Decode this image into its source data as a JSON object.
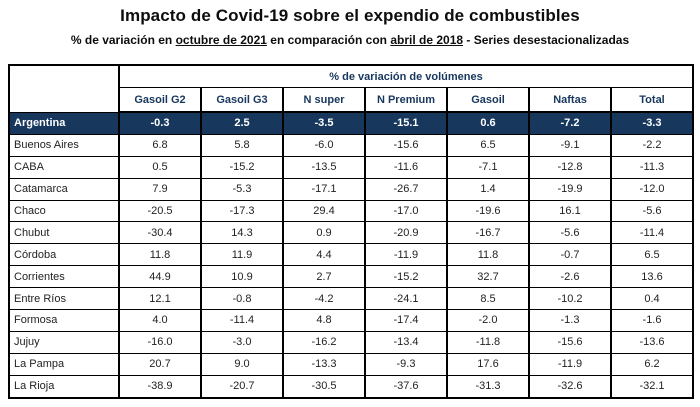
{
  "title": "Impacto de Covid-19 sobre el expendio de combustibles",
  "subtitle_parts": {
    "prefix": "% de variación en ",
    "period_new": "octubre de 2021",
    "middle": " en comparación con ",
    "period_base": "abril de 2018",
    "suffix": " - Series desestacionalizadas"
  },
  "colors": {
    "highlight_row_bg": "#17375D",
    "highlight_row_text": "#FFFFFF",
    "header_text": "#17375D",
    "border": "#000000"
  },
  "chart_data": {
    "type": "table",
    "title": "Impacto de Covid-19 sobre el expendio de combustibles",
    "subtitle": "% de variación en octubre de 2021 en comparación con abril de 2018 - Series desestacionalizadas",
    "group_header": "% de variación de volúmenes",
    "columns": [
      "Gasoil G2",
      "Gasoil G3",
      "N super",
      "N Premium",
      "Gasoil",
      "Naftas",
      "Total"
    ],
    "rows": [
      {
        "region": "Argentina",
        "highlight": true,
        "values": [
          -0.3,
          2.5,
          -3.5,
          -15.1,
          0.6,
          -7.2,
          -3.3
        ]
      },
      {
        "region": "Buenos Aires",
        "highlight": false,
        "values": [
          6.8,
          5.8,
          -6.0,
          -15.6,
          6.5,
          -9.1,
          -2.2
        ]
      },
      {
        "region": "CABA",
        "highlight": false,
        "values": [
          0.5,
          -15.2,
          -13.5,
          -11.6,
          -7.1,
          -12.8,
          -11.3
        ]
      },
      {
        "region": "Catamarca",
        "highlight": false,
        "values": [
          7.9,
          -5.3,
          -17.1,
          -26.7,
          1.4,
          -19.9,
          -12.0
        ]
      },
      {
        "region": "Chaco",
        "highlight": false,
        "values": [
          -20.5,
          -17.3,
          29.4,
          -17.0,
          -19.6,
          16.1,
          -5.6
        ]
      },
      {
        "region": "Chubut",
        "highlight": false,
        "values": [
          -30.4,
          14.3,
          0.9,
          -20.9,
          -16.7,
          -5.6,
          -11.4
        ]
      },
      {
        "region": "Córdoba",
        "highlight": false,
        "values": [
          11.8,
          11.9,
          4.4,
          -11.9,
          11.8,
          -0.7,
          6.5
        ]
      },
      {
        "region": "Corrientes",
        "highlight": false,
        "values": [
          44.9,
          10.9,
          2.7,
          -15.2,
          32.7,
          -2.6,
          13.6
        ]
      },
      {
        "region": "Entre Ríos",
        "highlight": false,
        "values": [
          12.1,
          -0.8,
          -4.2,
          -24.1,
          8.5,
          -10.2,
          0.4
        ]
      },
      {
        "region": "Formosa",
        "highlight": false,
        "values": [
          4.0,
          -11.4,
          4.8,
          -17.4,
          -2.0,
          -1.3,
          -1.6
        ]
      },
      {
        "region": "Jujuy",
        "highlight": false,
        "values": [
          -16.0,
          -3.0,
          -16.2,
          -13.4,
          -11.8,
          -15.6,
          -13.6
        ]
      },
      {
        "region": "La Pampa",
        "highlight": false,
        "values": [
          20.7,
          9.0,
          -13.3,
          -9.3,
          17.6,
          -11.9,
          6.2
        ]
      },
      {
        "region": "La Rioja",
        "highlight": false,
        "values": [
          -38.9,
          -20.7,
          -30.5,
          -37.6,
          -31.3,
          -32.6,
          -32.1
        ]
      }
    ]
  }
}
